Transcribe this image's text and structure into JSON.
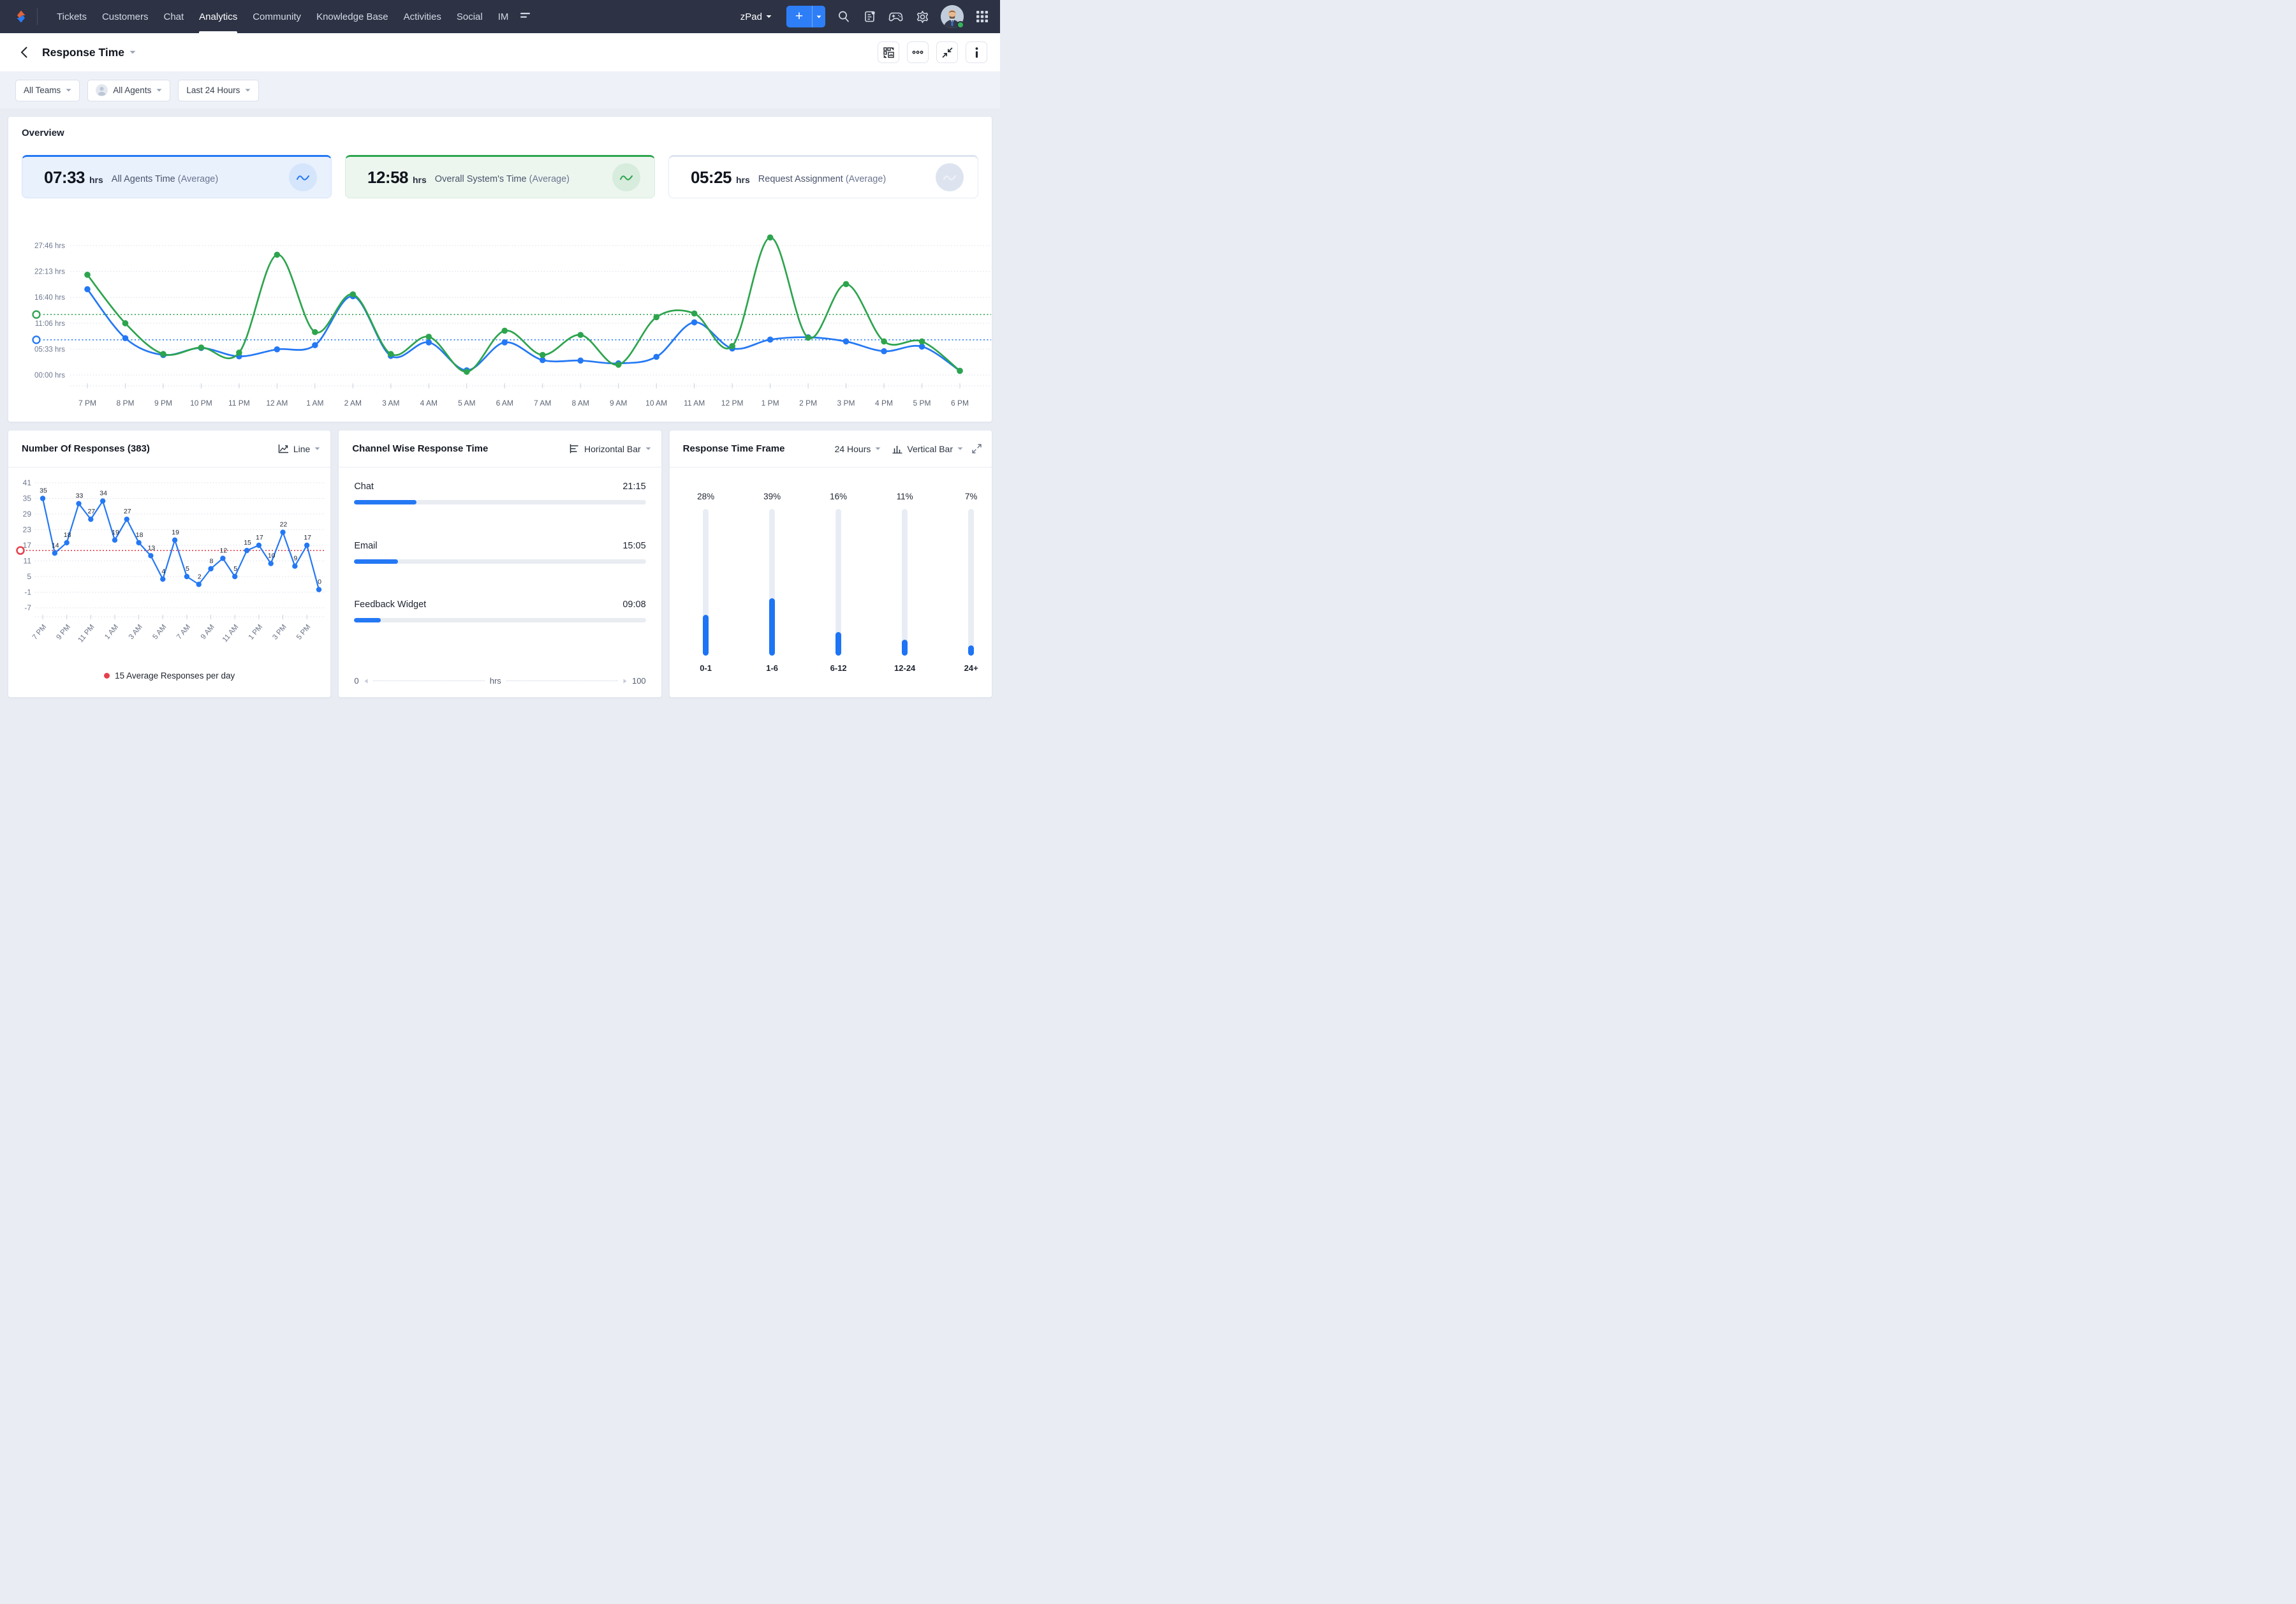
{
  "colors": {
    "accent_blue": "#2478f4",
    "accent_green": "#2da44e",
    "accent_red": "#e6404d",
    "nav_bg": "#2d3345",
    "track_gray": "#e9edf2"
  },
  "icons": {
    "logo": "zoho-desk-logo",
    "nav_more": "double-line-more",
    "add": "plus",
    "search": "magnifier",
    "feeds": "notes-card-with-dot",
    "games": "game-controller",
    "settings": "gear",
    "apps": "grid-9",
    "back": "chevron-left",
    "caret": "chevron-down",
    "swap": "dashboard-switch",
    "more": "ellipsis",
    "collapse": "collapse-arrows",
    "info": "info",
    "wave": "wave-line",
    "line_chart": "line-chart",
    "hbar_chart": "horizontal-bar-chart",
    "vbar_chart": "vertical-bar-chart",
    "expand": "expand-arrows"
  },
  "nav": {
    "items": [
      {
        "label": "Tickets"
      },
      {
        "label": "Customers"
      },
      {
        "label": "Chat"
      },
      {
        "label": "Analytics"
      },
      {
        "label": "Community"
      },
      {
        "label": "Knowledge Base"
      },
      {
        "label": "Activities"
      },
      {
        "label": "Social"
      },
      {
        "label": "IM"
      }
    ],
    "active": "Analytics",
    "product": "zPad"
  },
  "header": {
    "title": "Response Time"
  },
  "filters": {
    "teams": "All Teams",
    "agents": "All Agents",
    "range": "Last 24 Hours"
  },
  "overview": {
    "title": "Overview",
    "cards": [
      {
        "value": "07:33",
        "unit": "hrs",
        "label": "All Agents Time",
        "sub": "(Average)"
      },
      {
        "value": "12:58",
        "unit": "hrs",
        "label": "Overall System's Time",
        "sub": "(Average)"
      },
      {
        "value": "05:25",
        "unit": "hrs",
        "label": "Request Assignment",
        "sub": "(Average)"
      }
    ]
  },
  "chart_data": [
    {
      "id": "overview_response_time",
      "type": "line",
      "grid": "dotted-horizontal",
      "legend_position": "none",
      "x": [
        "7 PM",
        "8 PM",
        "9 PM",
        "10 PM",
        "11 PM",
        "12 AM",
        "1 AM",
        "2 AM",
        "3 AM",
        "4 AM",
        "5 AM",
        "6 AM",
        "7 AM",
        "8 AM",
        "9 AM",
        "10 AM",
        "11 AM",
        "12 PM",
        "1 PM",
        "2 PM",
        "3 PM",
        "4 PM",
        "5 PM",
        "6 PM"
      ],
      "ylabel_ticks": [
        "27:46 hrs",
        "22:13 hrs",
        "16:40 hrs",
        "11:06 hrs",
        "05:33 hrs",
        "00:00 hrs"
      ],
      "ymax_hrs": 27.767,
      "series": [
        {
          "name": "All Agents Time",
          "color": "#2478f4",
          "avg_hrs": 7.55,
          "avg_label": "07:33",
          "values": [
            18.4,
            7.9,
            4.3,
            5.8,
            4.0,
            5.5,
            6.4,
            16.9,
            4.1,
            7.0,
            1.0,
            7.0,
            3.2,
            3.1,
            2.5,
            3.9,
            11.3,
            5.7,
            7.6,
            8.1,
            7.2,
            5.1,
            6.1,
            0.9
          ]
        },
        {
          "name": "Overall System's Time",
          "color": "#2da44e",
          "avg_hrs": 12.97,
          "avg_label": "12:58",
          "values": [
            21.5,
            11.1,
            4.5,
            5.9,
            4.8,
            25.8,
            9.2,
            17.3,
            4.5,
            8.2,
            0.7,
            9.5,
            4.3,
            8.6,
            2.2,
            12.4,
            13.2,
            6.2,
            29.5,
            8.0,
            19.5,
            7.2,
            7.2,
            0.9
          ]
        }
      ]
    },
    {
      "id": "number_of_responses",
      "type": "line",
      "title": "Number Of Responses (383)",
      "total": 383,
      "chart_type_selector": "Line",
      "x": [
        "7 PM",
        "8 PM",
        "9 PM",
        "10 PM",
        "11 PM",
        "12 AM",
        "1 AM",
        "2 AM",
        "3 AM",
        "4 AM",
        "5 AM",
        "6 AM",
        "7 AM",
        "8 AM",
        "9 AM",
        "10 AM",
        "11 AM",
        "12 PM",
        "1 PM",
        "2 PM",
        "3 PM",
        "4 PM",
        "5 PM",
        "6 PM"
      ],
      "x_ticks_shown": [
        "7 PM",
        "9 PM",
        "11 PM",
        "1 AM",
        "3 AM",
        "5 AM",
        "7 AM",
        "9 AM",
        "11 AM",
        "1 PM",
        "3 PM",
        "5 PM"
      ],
      "values": [
        35,
        14,
        18,
        33,
        27,
        34,
        19,
        27,
        18,
        13,
        4,
        19,
        5,
        2,
        8,
        12,
        5,
        15,
        17,
        10,
        22,
        9,
        17,
        0
      ],
      "y_ticks": [
        41,
        35,
        29,
        23,
        17,
        11,
        5,
        -1,
        -7
      ],
      "average": 15,
      "average_color": "#e6404d",
      "line_color": "#2478f4",
      "legend": "15 Average Responses per day"
    },
    {
      "id": "channel_wise_response_time",
      "type": "bar-horizontal",
      "title": "Channel Wise Response Time",
      "chart_type_selector": "Horizontal Bar",
      "categories": [
        "Chat",
        "Email",
        "Feedback Widget"
      ],
      "value_labels": [
        "21:15",
        "15:05",
        "09:08"
      ],
      "values_hrs": [
        21.25,
        15.08,
        9.13
      ],
      "axis": {
        "min": 0,
        "max": 100,
        "unit": "hrs",
        "min_label": "0",
        "max_label": "100"
      },
      "bar_color": "#2478f4"
    },
    {
      "id": "response_time_frame",
      "type": "bar",
      "title": "Response Time Frame",
      "range_selector": "24 Hours",
      "chart_type_selector": "Vertical Bar",
      "categories": [
        "0-1",
        "1-6",
        "6-12",
        "12-24",
        "24+"
      ],
      "values_pct": [
        28,
        39,
        16,
        11,
        7
      ],
      "bar_color": "#1d74f5"
    }
  ]
}
